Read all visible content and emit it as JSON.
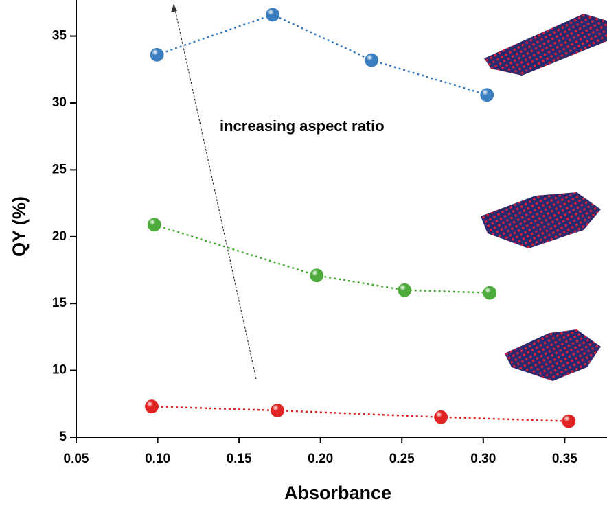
{
  "chart_data": {
    "type": "scatter",
    "x_label": "Absorbance",
    "y_label": "QY (%)",
    "annotation": "increasing aspect ratio",
    "xlim": [
      0.05,
      0.376
    ],
    "ylim": [
      5,
      37.7
    ],
    "xticks": [
      {
        "value": 0.05,
        "label": "0.05"
      },
      {
        "value": 0.1,
        "label": "0.10"
      },
      {
        "value": 0.15,
        "label": "0.15"
      },
      {
        "value": 0.2,
        "label": "0.20"
      },
      {
        "value": 0.25,
        "label": "0.25"
      },
      {
        "value": 0.3,
        "label": "0.30"
      },
      {
        "value": 0.35,
        "label": "0.35"
      }
    ],
    "yticks": [
      5,
      10,
      15,
      20,
      25,
      30,
      35
    ],
    "series": [
      {
        "color": "#3a7ebf",
        "x": [
          0.0996,
          0.1707,
          0.2314,
          0.3023
        ],
        "values": [
          33.6,
          36.6,
          33.2,
          30.6
        ]
      },
      {
        "color": "#4cab3a",
        "x": [
          0.098,
          0.1977,
          0.2517,
          0.304
        ],
        "values": [
          20.9,
          17.1,
          16.0,
          15.8
        ]
      },
      {
        "color": "#e02424",
        "x": [
          0.0964,
          0.1736,
          0.274,
          0.3525
        ],
        "values": [
          7.3,
          7.0,
          6.5,
          6.2
        ]
      }
    ]
  }
}
